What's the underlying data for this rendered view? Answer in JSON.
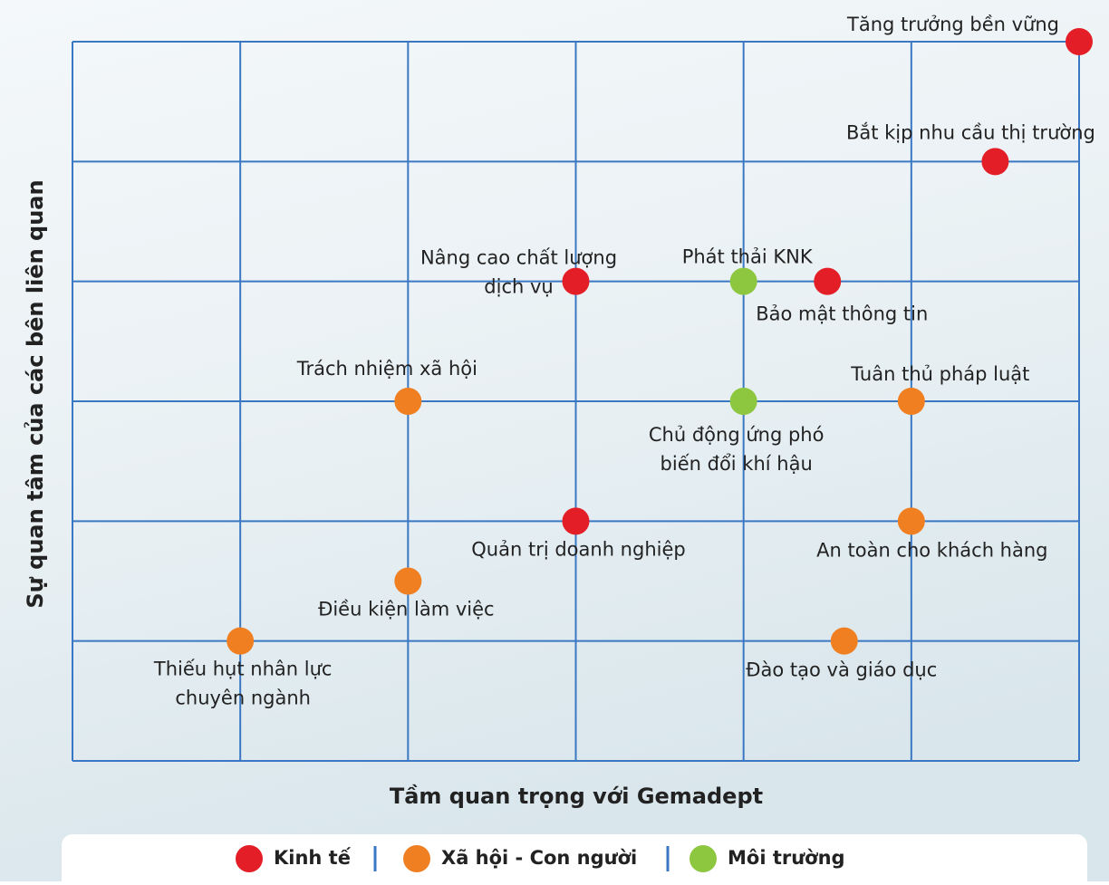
{
  "chart_data": {
    "type": "scatter",
    "xlabel": "Tầm quan trọng với Gemadept",
    "ylabel": "Sự quan tâm của các bên liên quan",
    "xlim": [
      0,
      6
    ],
    "ylim": [
      0,
      6
    ],
    "xticks": [
      0,
      1,
      2,
      3,
      4,
      5,
      6
    ],
    "yticks": [
      0,
      1,
      2,
      3,
      4,
      5,
      6
    ],
    "grid": true,
    "legend": "bottom",
    "series": [
      {
        "name": "Kinh tế",
        "color": "#e41e26",
        "x": [
          6.0,
          5.5,
          3.0,
          4.5,
          3.0
        ],
        "values": [
          6.0,
          5.0,
          4.0,
          4.0,
          2.0
        ],
        "labels": [
          [
            "Tăng trưởng bền vững"
          ],
          [
            "Bắt kịp nhu cầu thị trường"
          ],
          [
            "Nâng cao chất lượng",
            "dịch vụ"
          ],
          [
            "Bảo mật thông tin"
          ],
          [
            "Quản trị doanh nghiệp"
          ]
        ]
      },
      {
        "name": "Xã hội - Con người",
        "color": "#f07f22",
        "x": [
          2.0,
          5.0,
          5.0,
          2.0,
          1.0,
          4.6
        ],
        "values": [
          3.0,
          3.0,
          2.0,
          1.5,
          1.0,
          1.0
        ],
        "labels": [
          [
            "Trách nhiệm xã hội"
          ],
          [
            "Tuân thủ pháp luật"
          ],
          [
            "An toàn cho khách hàng"
          ],
          [
            "Điều kiện làm việc"
          ],
          [
            "Thiếu hụt nhân lực",
            "chuyên ngành"
          ],
          [
            "Đào tạo và giáo dục"
          ]
        ]
      },
      {
        "name": "Môi trường",
        "color": "#8dc63f",
        "x": [
          4.0,
          4.0
        ],
        "values": [
          4.0,
          3.0
        ],
        "labels": [
          [
            "Phát thải KNK"
          ],
          [
            "Chủ động ứng phó",
            "biến đổi khí hậu"
          ]
        ]
      }
    ]
  }
}
